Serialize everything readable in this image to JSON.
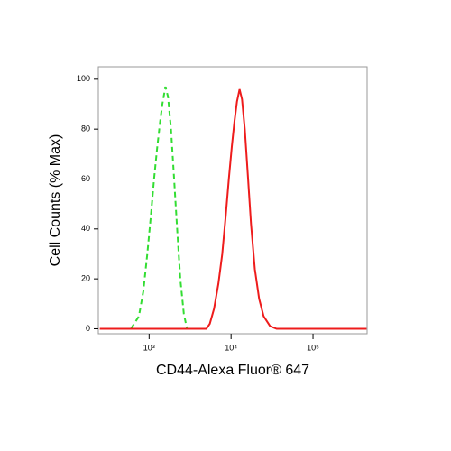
{
  "chart_data": {
    "type": "line",
    "x_label": "CD44-Alexa Fluor® 647",
    "y_label": "Cell Counts (% Max)",
    "xscale": "log",
    "xlim": [
      240,
      457000
    ],
    "ylim": [
      -2,
      105
    ],
    "xticks": [
      {
        "value": 1000,
        "label": "10³"
      },
      {
        "value": 10000,
        "label": "10⁴"
      },
      {
        "value": 100000,
        "label": "10⁵"
      }
    ],
    "yticks": [
      0,
      20,
      40,
      60,
      80,
      100
    ],
    "series": [
      {
        "color": "#33dd33",
        "dash": true,
        "x": [
          600,
          750,
          850,
          950,
          1050,
          1150,
          1250,
          1350,
          1450,
          1580,
          1700,
          1850,
          2000,
          2200,
          2400,
          2650,
          2900
        ],
        "values": [
          0,
          5,
          15,
          30,
          45,
          60,
          72,
          82,
          90,
          97,
          93,
          80,
          62,
          40,
          20,
          6,
          0
        ]
      },
      {
        "color": "#ee1c1c",
        "dash": false,
        "x": [
          250,
          5000,
          5500,
          6200,
          7000,
          7800,
          8600,
          9400,
          10200,
          11000,
          11800,
          12700,
          13600,
          14700,
          16000,
          17500,
          19500,
          22000,
          25000,
          30000,
          36000,
          450000
        ],
        "values": [
          0,
          0,
          2,
          8,
          18,
          30,
          45,
          60,
          73,
          83,
          91,
          96,
          92,
          80,
          62,
          42,
          24,
          12,
          5,
          1,
          0,
          0
        ]
      }
    ]
  }
}
